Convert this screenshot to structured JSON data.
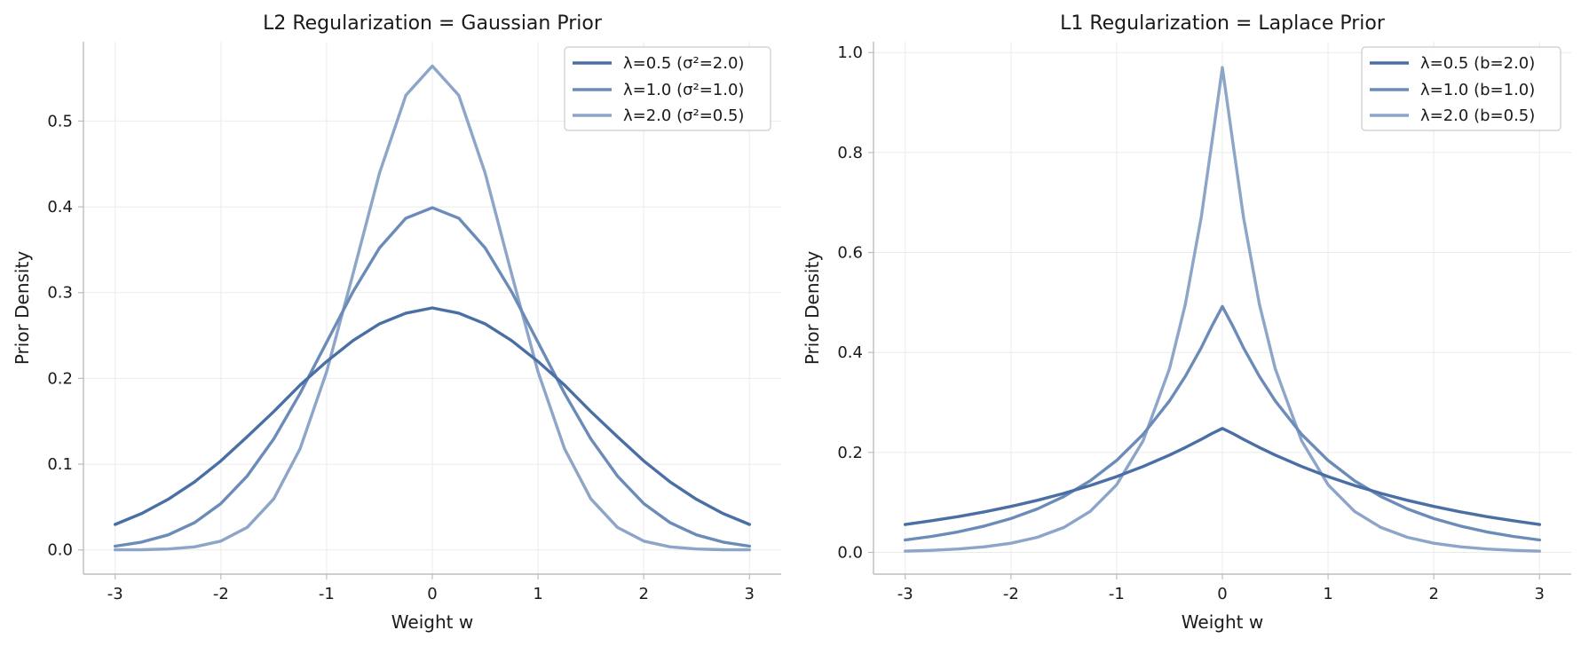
{
  "colors": {
    "series": [
      "#4a6fa5",
      "#6b8bb8",
      "#8ca5c8"
    ],
    "grid": "#ebebeb",
    "spine": "#bdbdbd",
    "legend_border": "#cccccc"
  },
  "chart_data": [
    {
      "type": "line",
      "name": "gaussian",
      "title": "L2 Regularization = Gaussian Prior",
      "xlabel": "Weight w",
      "ylabel": "Prior Density",
      "xlim": [
        -3.3,
        3.3
      ],
      "ylim": [
        -0.0282,
        0.5925
      ],
      "xticks": [
        -3,
        -2,
        -1,
        0,
        1,
        2,
        3
      ],
      "xtick_labels": [
        "-3",
        "-2",
        "-1",
        "0",
        "1",
        "2",
        "3"
      ],
      "yticks": [
        0.0,
        0.1,
        0.2,
        0.3,
        0.4,
        0.5
      ],
      "ytick_labels": [
        "0.0",
        "0.1",
        "0.2",
        "0.3",
        "0.4",
        "0.5"
      ],
      "grid": true,
      "legend_position": "upper right",
      "x": [
        -3,
        -2.75,
        -2.5,
        -2.25,
        -2,
        -1.75,
        -1.5,
        -1.25,
        -1,
        -0.75,
        -0.5,
        -0.25,
        0,
        0.25,
        0.5,
        0.75,
        1,
        1.25,
        1.5,
        1.75,
        2,
        2.25,
        2.5,
        2.75,
        3
      ],
      "series": [
        {
          "name": "λ=0.5 (σ²=2.0)",
          "values": [
            0.0297,
            0.0425,
            0.0589,
            0.0792,
            0.1038,
            0.1321,
            0.1613,
            0.1923,
            0.2197,
            0.2441,
            0.2636,
            0.276,
            0.2821,
            0.276,
            0.2636,
            0.2441,
            0.2197,
            0.1923,
            0.1613,
            0.1321,
            0.1038,
            0.0792,
            0.0589,
            0.0425,
            0.0297
          ]
        },
        {
          "name": "λ=1.0 (σ²=1.0)",
          "values": [
            0.0044,
            0.0091,
            0.0175,
            0.0317,
            0.054,
            0.0863,
            0.1295,
            0.1826,
            0.242,
            0.3011,
            0.3521,
            0.3867,
            0.3989,
            0.3867,
            0.3521,
            0.3011,
            0.242,
            0.1826,
            0.1295,
            0.0863,
            0.054,
            0.0317,
            0.0175,
            0.0091,
            0.0044
          ]
        },
        {
          "name": "λ=2.0 (σ²=0.5)",
          "values": [
            0.0001,
            0.0003,
            0.0011,
            0.0036,
            0.0103,
            0.0264,
            0.0595,
            0.1181,
            0.2076,
            0.3219,
            0.4394,
            0.53,
            0.5642,
            0.53,
            0.4394,
            0.3219,
            0.2076,
            0.1181,
            0.0595,
            0.0264,
            0.0103,
            0.0036,
            0.0011,
            0.0003,
            0.0001
          ]
        }
      ]
    },
    {
      "type": "line",
      "name": "laplace",
      "title": "L1 Regularization = Laplace Prior",
      "xlabel": "Weight w",
      "ylabel": "Prior Density",
      "xlim": [
        -3.3,
        3.3
      ],
      "ylim": [
        -0.0435,
        1.0217
      ],
      "xticks": [
        -3,
        -2,
        -1,
        0,
        1,
        2,
        3
      ],
      "xtick_labels": [
        "-3",
        "-2",
        "-1",
        "0",
        "1",
        "2",
        "3"
      ],
      "yticks": [
        0.0,
        0.2,
        0.4,
        0.6,
        0.8,
        1.0
      ],
      "ytick_labels": [
        "0.0",
        "0.2",
        "0.4",
        "0.6",
        "0.8",
        "1.0"
      ],
      "grid": true,
      "legend_position": "upper right",
      "x": [
        -3,
        -2.75,
        -2.5,
        -2.25,
        -2,
        -1.75,
        -1.5,
        -1.25,
        -1,
        -0.75,
        -0.5,
        -0.35,
        -0.2,
        -0.1,
        0,
        0.1,
        0.2,
        0.35,
        0.5,
        0.75,
        1,
        1.25,
        1.5,
        1.75,
        2,
        2.25,
        2.5,
        2.75,
        3
      ],
      "series": [
        {
          "name": "λ=0.5 (b=2.0)",
          "values": [
            0.0558,
            0.0633,
            0.0716,
            0.0812,
            0.092,
            0.1042,
            0.1181,
            0.1338,
            0.1516,
            0.1718,
            0.1947,
            0.2098,
            0.2262,
            0.2378,
            0.248,
            0.2378,
            0.2262,
            0.2098,
            0.1947,
            0.1718,
            0.1516,
            0.1338,
            0.1181,
            0.1042,
            0.092,
            0.0812,
            0.0716,
            0.0633,
            0.0558
          ]
        },
        {
          "name": "λ=1.0 (b=1.0)",
          "values": [
            0.0249,
            0.032,
            0.041,
            0.0527,
            0.0677,
            0.0869,
            0.1116,
            0.1433,
            0.1839,
            0.2362,
            0.3033,
            0.3523,
            0.4093,
            0.4524,
            0.492,
            0.4524,
            0.4093,
            0.3523,
            0.3033,
            0.2362,
            0.1839,
            0.1433,
            0.1116,
            0.0869,
            0.0677,
            0.0527,
            0.041,
            0.032,
            0.0249
          ]
        },
        {
          "name": "λ=2.0 (b=0.5)",
          "values": [
            0.0025,
            0.0041,
            0.0067,
            0.0111,
            0.0183,
            0.0302,
            0.0498,
            0.0821,
            0.1353,
            0.2231,
            0.3679,
            0.4966,
            0.6703,
            0.8187,
            0.97,
            0.8187,
            0.6703,
            0.4966,
            0.3679,
            0.2231,
            0.1353,
            0.0821,
            0.0498,
            0.0302,
            0.0183,
            0.0111,
            0.0067,
            0.0041,
            0.0025
          ]
        }
      ]
    }
  ]
}
